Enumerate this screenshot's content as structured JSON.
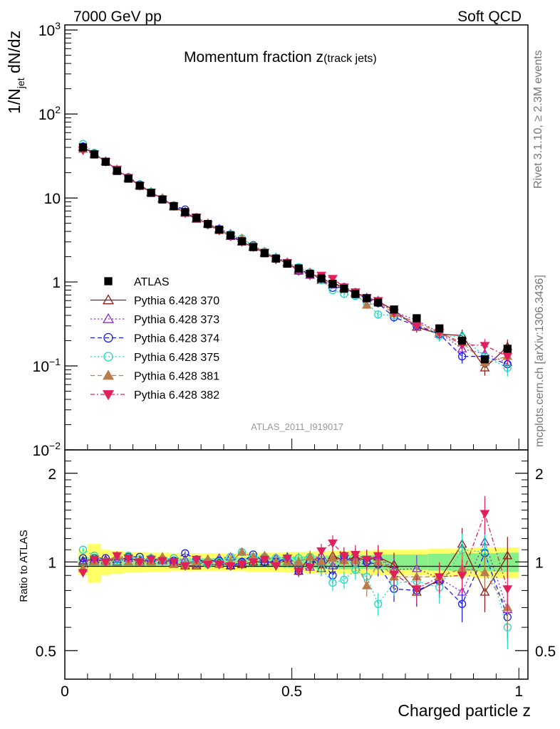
{
  "header": {
    "left": "7000 GeV pp",
    "right": "Soft QCD"
  },
  "side_text": {
    "upper": "Rivet 3.1.10, ≥ 2.3M events",
    "lower": "mcplots.cern.ch [arXiv:1306.3436]"
  },
  "chart_data": {
    "type": "scatter",
    "title_main": "Momentum fraction ",
    "title_var": "z",
    "title_sub": "(track jets)",
    "analysis_id": "ATLAS_2011_I919017",
    "ylabel_main": "1/N",
    "ylabel_sub": "jet",
    "ylabel_tail": " dN/dz",
    "ratio_ylabel": "Ratio to ATLAS",
    "xlabel": "Charged particle z",
    "x_ticks": [
      "0",
      "0.5",
      "1"
    ],
    "main_y_ticks": [
      {
        "value": 0.01,
        "base": "10",
        "exp": "−2"
      },
      {
        "value": 0.1,
        "base": "10",
        "exp": "−1"
      },
      {
        "value": 1,
        "base": "1",
        "exp": ""
      },
      {
        "value": 10,
        "base": "10",
        "exp": ""
      },
      {
        "value": 100,
        "base": "10",
        "exp": "2"
      },
      {
        "value": 1000,
        "base": "10",
        "exp": "3"
      }
    ],
    "ratio_y_ticks": [
      "0.5",
      "1",
      "2"
    ],
    "xlim": [
      0,
      1.02
    ],
    "main_ylim": [
      0.01,
      1150
    ],
    "main_yscale": "log",
    "ratio_ylim": [
      0.4,
      2.4
    ],
    "ratio_yscale": "log",
    "legend_position": "left-middle",
    "x": [
      0.04,
      0.065,
      0.09,
      0.115,
      0.14,
      0.165,
      0.19,
      0.215,
      0.24,
      0.265,
      0.29,
      0.315,
      0.34,
      0.365,
      0.39,
      0.415,
      0.44,
      0.465,
      0.49,
      0.515,
      0.54,
      0.565,
      0.59,
      0.615,
      0.64,
      0.665,
      0.69,
      0.725,
      0.775,
      0.825,
      0.875,
      0.925,
      0.975
    ],
    "band_edges": [
      0.03,
      0.05,
      0.08,
      0.1,
      0.13,
      0.15,
      0.18,
      0.2,
      0.23,
      0.25,
      0.28,
      0.3,
      0.33,
      0.35,
      0.38,
      0.4,
      0.43,
      0.45,
      0.48,
      0.5,
      0.53,
      0.55,
      0.58,
      0.6,
      0.63,
      0.65,
      0.68,
      0.7,
      0.75,
      0.8,
      0.85,
      0.9,
      0.95,
      1.0
    ],
    "ref_stat_band": [
      0.04,
      0.035,
      0.03,
      0.03,
      0.03,
      0.03,
      0.03,
      0.03,
      0.03,
      0.03,
      0.03,
      0.03,
      0.03,
      0.035,
      0.035,
      0.04,
      0.04,
      0.04,
      0.045,
      0.045,
      0.05,
      0.05,
      0.05,
      0.055,
      0.055,
      0.055,
      0.06,
      0.06,
      0.06,
      0.065,
      0.07,
      0.07,
      0.075
    ],
    "ref_total_band": [
      0.1,
      0.15,
      0.1,
      0.09,
      0.08,
      0.08,
      0.075,
      0.075,
      0.07,
      0.07,
      0.07,
      0.07,
      0.07,
      0.07,
      0.07,
      0.075,
      0.075,
      0.075,
      0.08,
      0.08,
      0.085,
      0.085,
      0.09,
      0.09,
      0.09,
      0.095,
      0.1,
      0.1,
      0.1,
      0.11,
      0.11,
      0.12,
      0.12
    ],
    "series": [
      {
        "name": "ATLAS",
        "color": "#000000",
        "marker": "square",
        "filled": true,
        "dash": "none",
        "role": "data",
        "values": [
          40,
          33,
          27,
          21,
          17,
          14,
          11.5,
          9.6,
          8.0,
          6.8,
          5.8,
          4.9,
          4.2,
          3.6,
          3.05,
          2.6,
          2.2,
          1.9,
          1.65,
          1.45,
          1.25,
          1.1,
          0.95,
          0.83,
          0.72,
          0.64,
          0.57,
          0.47,
          0.37,
          0.28,
          0.2,
          0.12,
          0.16
        ],
        "ratio": []
      },
      {
        "name": "Pythia 6.428 370",
        "color": "#8b1a1a",
        "marker": "triangle-up",
        "filled": false,
        "dash": "none",
        "role": "mc",
        "values": [
          40.5,
          33.5,
          27.2,
          21.5,
          17.5,
          14.2,
          11.6,
          9.8,
          7.9,
          6.6,
          5.6,
          5.0,
          4.2,
          3.5,
          3.0,
          2.6,
          2.2,
          1.9,
          1.7,
          1.35,
          1.3,
          1.05,
          1.0,
          0.84,
          0.75,
          0.65,
          0.59,
          0.46,
          0.29,
          0.24,
          0.23,
          0.095,
          0.17
        ],
        "ratio": [
          1.01,
          1.02,
          1.01,
          1.02,
          1.03,
          1.01,
          1.01,
          1.02,
          0.99,
          0.97,
          0.97,
          1.02,
          1.0,
          0.97,
          0.98,
          1.0,
          1.0,
          1.0,
          1.03,
          0.93,
          1.04,
          0.95,
          1.05,
          1.01,
          1.04,
          1.01,
          1.04,
          0.98,
          0.79,
          0.87,
          1.15,
          0.79,
          1.05
        ]
      },
      {
        "name": "Pythia 6.428 373",
        "color": "#8a2be2",
        "marker": "triangle-up",
        "filled": false,
        "dash": "2,3",
        "role": "mc",
        "values": [
          40,
          33,
          27.5,
          21,
          17.5,
          14,
          11.8,
          9.7,
          8.1,
          6.9,
          5.7,
          4.9,
          4.3,
          3.75,
          3.05,
          2.7,
          2.25,
          1.95,
          1.72,
          1.4,
          1.2,
          1.15,
          0.92,
          0.86,
          0.73,
          0.65,
          0.6,
          0.44,
          0.35,
          0.25,
          0.16,
          0.14,
          0.11
        ],
        "ratio": [
          1.0,
          1.01,
          1.02,
          1.0,
          1.03,
          1.0,
          1.03,
          1.01,
          1.01,
          1.02,
          0.98,
          1.0,
          1.03,
          1.04,
          1.0,
          1.04,
          1.02,
          1.03,
          1.04,
          0.97,
          0.96,
          1.05,
          0.97,
          1.04,
          1.02,
          1.01,
          1.05,
          0.94,
          0.95,
          0.88,
          0.79,
          1.17,
          0.69
        ]
      },
      {
        "name": "Pythia 6.428 374",
        "color": "#1a1aee",
        "marker": "circle",
        "filled": false,
        "dash": "6,4",
        "role": "mc",
        "values": [
          41,
          34,
          27,
          21.5,
          17.7,
          14.5,
          11.7,
          9.8,
          8.1,
          7.3,
          5.9,
          4.9,
          4.25,
          3.5,
          3.05,
          2.75,
          2.2,
          1.9,
          1.7,
          1.35,
          1.25,
          1.1,
          0.85,
          0.87,
          0.71,
          0.64,
          0.56,
          0.38,
          0.3,
          0.24,
          0.13,
          0.13,
          0.105
        ],
        "ratio": [
          1.03,
          1.03,
          1.03,
          1.02,
          1.04,
          1.04,
          1.02,
          1.02,
          1.01,
          1.07,
          1.02,
          1.0,
          1.01,
          0.97,
          1.0,
          1.06,
          1.0,
          1.0,
          1.03,
          0.93,
          1.0,
          1.0,
          0.9,
          1.05,
          0.99,
          1.0,
          0.98,
          0.81,
          0.8,
          0.86,
          0.72,
          1.07,
          0.65
        ]
      },
      {
        "name": "Pythia 6.428 375",
        "color": "#1ed6c4",
        "marker": "circle",
        "filled": false,
        "dash": "2,3",
        "role": "mc",
        "values": [
          44,
          34.5,
          27,
          21.5,
          17.5,
          14.3,
          11.8,
          9.8,
          8.2,
          6.7,
          5.8,
          4.8,
          4.2,
          3.7,
          3.3,
          2.7,
          2.3,
          1.95,
          1.7,
          1.5,
          1.3,
          1.05,
          0.8,
          0.72,
          0.68,
          0.57,
          0.41,
          0.4,
          0.32,
          0.23,
          0.22,
          0.13,
          0.095
        ],
        "ratio": [
          1.1,
          1.05,
          1.0,
          1.02,
          1.05,
          1.02,
          1.03,
          1.02,
          1.03,
          0.98,
          1.0,
          0.98,
          1.0,
          1.04,
          1.08,
          1.04,
          1.04,
          1.03,
          1.03,
          1.03,
          1.04,
          0.95,
          0.85,
          0.87,
          0.94,
          0.89,
          0.72,
          0.85,
          0.86,
          0.82,
          1.1,
          1.08,
          0.6
        ]
      },
      {
        "name": "Pythia 6.428 381",
        "color": "#b87d4b",
        "marker": "triangle-up",
        "filled": true,
        "dash": "6,4",
        "role": "mc",
        "values": [
          38,
          33,
          27,
          22,
          17,
          14,
          11.5,
          10,
          7.8,
          6.7,
          5.8,
          5.0,
          4.1,
          3.6,
          3.3,
          2.7,
          2.3,
          1.9,
          1.65,
          1.45,
          1.3,
          1.1,
          0.98,
          0.84,
          0.73,
          0.53,
          0.57,
          0.42,
          0.33,
          0.25,
          0.19,
          0.11,
          0.13
        ],
        "ratio": [
          0.95,
          1.0,
          1.0,
          1.05,
          1.0,
          1.0,
          1.0,
          1.04,
          0.98,
          0.98,
          1.0,
          1.02,
          0.98,
          1.0,
          1.08,
          1.04,
          1.05,
          1.0,
          1.0,
          1.0,
          1.04,
          1.0,
          1.03,
          1.01,
          1.01,
          0.83,
          1.0,
          0.89,
          0.89,
          0.89,
          0.95,
          0.92,
          0.7
        ]
      },
      {
        "name": "Pythia 6.428 382",
        "color": "#e0205a",
        "marker": "triangle-down",
        "filled": true,
        "dash": "6,3,2,3",
        "role": "mc",
        "values": [
          37,
          33.5,
          27,
          22,
          17.5,
          14,
          11.7,
          9.7,
          8.0,
          6.6,
          5.9,
          4.8,
          4.1,
          3.5,
          3.0,
          2.6,
          2.25,
          1.85,
          1.7,
          1.35,
          1.2,
          1.2,
          1.1,
          0.87,
          0.76,
          0.65,
          0.6,
          0.43,
          0.3,
          0.25,
          0.18,
          0.175,
          0.13
        ],
        "ratio": [
          0.92,
          1.02,
          1.0,
          1.05,
          1.03,
          1.0,
          1.02,
          1.01,
          1.0,
          0.97,
          1.02,
          0.98,
          0.98,
          0.97,
          0.98,
          1.0,
          1.02,
          0.97,
          1.03,
          0.93,
          0.96,
          1.09,
          1.16,
          1.05,
          1.06,
          1.02,
          1.05,
          0.91,
          0.81,
          0.89,
          0.9,
          1.46,
          0.81
        ]
      }
    ]
  }
}
